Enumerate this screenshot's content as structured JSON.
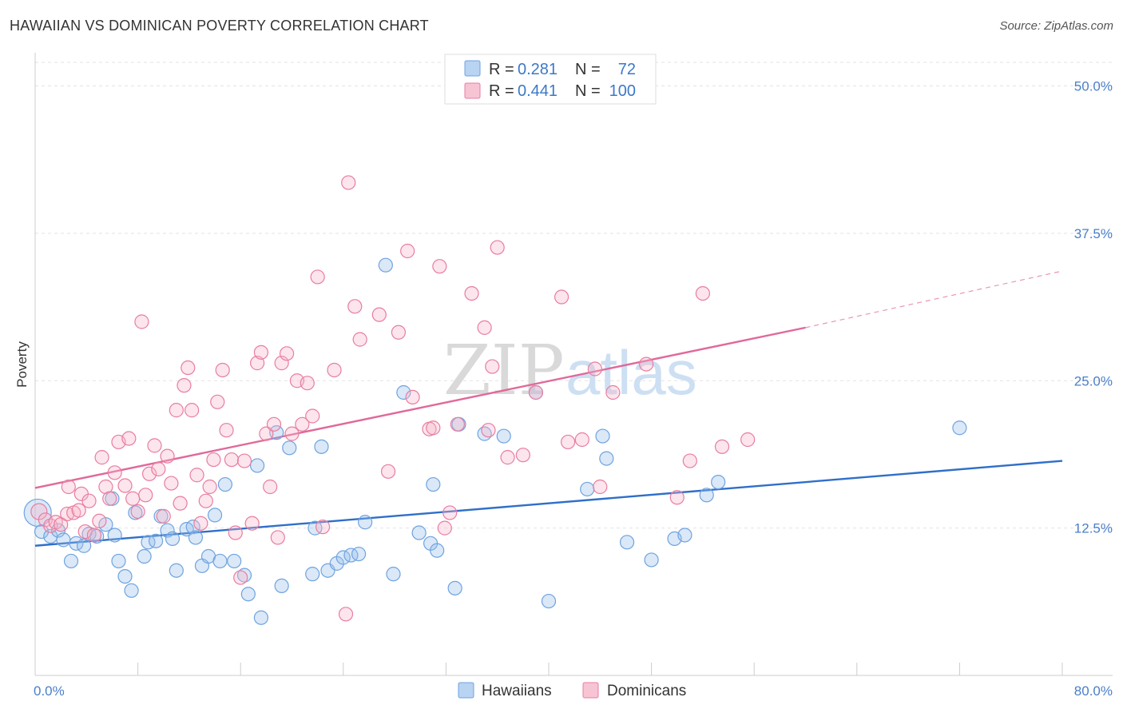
{
  "title": "HAWAIIAN VS DOMINICAN POVERTY CORRELATION CHART",
  "source": "Source: ZipAtlas.com",
  "watermark": {
    "zip": "ZIP",
    "atlas": "atlas"
  },
  "chart_data": {
    "type": "scatter",
    "ylabel": "Poverty",
    "xlim": [
      0,
      80
    ],
    "ylim": [
      0,
      52
    ],
    "x_tick_labels": [
      {
        "value": 0,
        "label": "0.0%"
      },
      {
        "value": 80,
        "label": "80.0%"
      }
    ],
    "y_tick_labels": [
      {
        "value": 12.5,
        "label": "12.5%"
      },
      {
        "value": 25,
        "label": "25.0%"
      },
      {
        "value": 37.5,
        "label": "37.5%"
      },
      {
        "value": 50,
        "label": "50.0%"
      }
    ],
    "grid": "horizontal-dashed",
    "legend_position": "top-center",
    "legend": [
      {
        "r_label": "R =",
        "r_value": "0.281",
        "n_label": "N =",
        "n_value": "72",
        "color": "#6fa3e0",
        "fill": "#b9d3f2"
      },
      {
        "r_label": "R =",
        "r_value": "0.441",
        "n_label": "N =",
        "n_value": "100",
        "color": "#e87da0",
        "fill": "#f7c4d4"
      }
    ],
    "series": [
      {
        "name": "Hawaiians",
        "color": "#6fa3e0",
        "fill": "rgba(150,190,235,0.35)",
        "trend_color": "#2f6fc9",
        "trend": {
          "x0": 0,
          "y0": 11.0,
          "x1": 80,
          "y1": 18.2
        },
        "points": [
          [
            0.2,
            13.8
          ],
          [
            0.5,
            12.2
          ],
          [
            1.2,
            11.8
          ],
          [
            1.8,
            12.3
          ],
          [
            2.2,
            11.5
          ],
          [
            2.8,
            9.7
          ],
          [
            3.2,
            11.2
          ],
          [
            3.8,
            11.0
          ],
          [
            4.2,
            12.0
          ],
          [
            4.8,
            11.8
          ],
          [
            5.5,
            12.8
          ],
          [
            6.0,
            15.0
          ],
          [
            6.2,
            11.9
          ],
          [
            6.5,
            9.7
          ],
          [
            7.0,
            8.4
          ],
          [
            7.5,
            7.2
          ],
          [
            7.8,
            13.8
          ],
          [
            8.5,
            10.1
          ],
          [
            8.8,
            11.3
          ],
          [
            9.4,
            11.4
          ],
          [
            9.8,
            13.5
          ],
          [
            10.3,
            12.3
          ],
          [
            10.7,
            11.6
          ],
          [
            11.0,
            8.9
          ],
          [
            11.8,
            12.4
          ],
          [
            12.3,
            12.6
          ],
          [
            12.5,
            11.7
          ],
          [
            13.0,
            9.3
          ],
          [
            13.5,
            10.1
          ],
          [
            14.0,
            13.6
          ],
          [
            14.4,
            9.7
          ],
          [
            14.8,
            16.2
          ],
          [
            15.5,
            9.7
          ],
          [
            16.3,
            8.5
          ],
          [
            16.6,
            6.9
          ],
          [
            17.3,
            17.8
          ],
          [
            17.6,
            4.9
          ],
          [
            18.8,
            20.6
          ],
          [
            19.2,
            7.6
          ],
          [
            19.8,
            19.3
          ],
          [
            21.6,
            8.6
          ],
          [
            21.8,
            12.5
          ],
          [
            22.3,
            19.4
          ],
          [
            22.8,
            8.9
          ],
          [
            23.5,
            9.5
          ],
          [
            24.0,
            10.0
          ],
          [
            24.6,
            10.2
          ],
          [
            25.2,
            10.3
          ],
          [
            25.7,
            13.0
          ],
          [
            27.3,
            34.8
          ],
          [
            27.9,
            8.6
          ],
          [
            28.7,
            24.0
          ],
          [
            29.9,
            12.1
          ],
          [
            30.8,
            11.2
          ],
          [
            31.0,
            16.2
          ],
          [
            31.3,
            10.6
          ],
          [
            32.7,
            7.4
          ],
          [
            33.0,
            21.3
          ],
          [
            35.0,
            20.5
          ],
          [
            36.5,
            20.3
          ],
          [
            39.0,
            24.0
          ],
          [
            40.0,
            6.3
          ],
          [
            43.0,
            15.8
          ],
          [
            44.2,
            20.3
          ],
          [
            44.5,
            18.4
          ],
          [
            46.1,
            11.3
          ],
          [
            48.0,
            9.8
          ],
          [
            49.8,
            11.6
          ],
          [
            50.6,
            11.9
          ],
          [
            52.3,
            15.3
          ],
          [
            53.2,
            16.4
          ],
          [
            72.0,
            21.0
          ]
        ]
      },
      {
        "name": "Dominicans",
        "color": "#e87da0",
        "fill": "rgba(245,180,200,0.35)",
        "trend_color": "#e0699a",
        "trend": {
          "x0": 0,
          "y0": 15.9,
          "x1": 60,
          "y1": 29.5
        },
        "trend_dashed_to": {
          "x": 80,
          "y": 34.3
        },
        "points": [
          [
            0.3,
            13.9
          ],
          [
            0.8,
            13.2
          ],
          [
            1.2,
            12.7
          ],
          [
            1.6,
            13.0
          ],
          [
            2.0,
            12.8
          ],
          [
            2.5,
            13.7
          ],
          [
            2.6,
            16.0
          ],
          [
            3.0,
            13.8
          ],
          [
            3.4,
            14.0
          ],
          [
            3.6,
            15.4
          ],
          [
            3.9,
            12.2
          ],
          [
            4.2,
            14.8
          ],
          [
            4.6,
            11.9
          ],
          [
            5.0,
            13.1
          ],
          [
            5.2,
            18.5
          ],
          [
            5.5,
            16.0
          ],
          [
            5.8,
            15.0
          ],
          [
            6.2,
            17.2
          ],
          [
            6.5,
            19.8
          ],
          [
            7.0,
            16.1
          ],
          [
            7.3,
            20.1
          ],
          [
            7.6,
            15.0
          ],
          [
            8.0,
            13.9
          ],
          [
            8.3,
            30.0
          ],
          [
            8.6,
            15.3
          ],
          [
            8.9,
            17.1
          ],
          [
            9.3,
            19.5
          ],
          [
            9.6,
            17.5
          ],
          [
            10.0,
            13.5
          ],
          [
            10.3,
            18.6
          ],
          [
            10.6,
            16.3
          ],
          [
            11.0,
            22.5
          ],
          [
            11.3,
            14.6
          ],
          [
            11.6,
            24.6
          ],
          [
            11.9,
            26.1
          ],
          [
            12.2,
            22.5
          ],
          [
            12.6,
            17.0
          ],
          [
            12.9,
            12.9
          ],
          [
            13.3,
            14.8
          ],
          [
            13.6,
            16.0
          ],
          [
            13.9,
            18.3
          ],
          [
            14.2,
            23.2
          ],
          [
            14.6,
            25.9
          ],
          [
            14.9,
            20.8
          ],
          [
            15.3,
            18.3
          ],
          [
            15.6,
            12.1
          ],
          [
            16.0,
            8.3
          ],
          [
            16.3,
            18.2
          ],
          [
            16.9,
            12.9
          ],
          [
            17.3,
            26.5
          ],
          [
            17.6,
            27.4
          ],
          [
            18.0,
            20.5
          ],
          [
            18.3,
            16.0
          ],
          [
            18.6,
            21.3
          ],
          [
            18.9,
            11.7
          ],
          [
            19.2,
            26.5
          ],
          [
            19.6,
            27.3
          ],
          [
            20.0,
            20.5
          ],
          [
            20.4,
            25.0
          ],
          [
            20.8,
            21.3
          ],
          [
            21.2,
            24.8
          ],
          [
            21.6,
            22.0
          ],
          [
            22.0,
            33.8
          ],
          [
            22.4,
            12.6
          ],
          [
            23.3,
            25.9
          ],
          [
            24.2,
            5.2
          ],
          [
            24.4,
            41.8
          ],
          [
            24.9,
            31.3
          ],
          [
            25.3,
            28.5
          ],
          [
            26.8,
            30.6
          ],
          [
            27.5,
            17.3
          ],
          [
            28.3,
            29.1
          ],
          [
            29.0,
            36.0
          ],
          [
            29.4,
            23.6
          ],
          [
            30.7,
            20.9
          ],
          [
            31.5,
            34.7
          ],
          [
            31.9,
            12.5
          ],
          [
            32.3,
            13.8
          ],
          [
            32.9,
            21.3
          ],
          [
            34.0,
            32.4
          ],
          [
            35.0,
            29.5
          ],
          [
            35.3,
            20.8
          ],
          [
            35.6,
            26.2
          ],
          [
            36.8,
            18.5
          ],
          [
            38.0,
            18.7
          ],
          [
            39.0,
            24.0
          ],
          [
            41.0,
            32.1
          ],
          [
            41.5,
            19.8
          ],
          [
            42.6,
            20.0
          ],
          [
            43.6,
            26.0
          ],
          [
            44.0,
            16.0
          ],
          [
            45.0,
            24.0
          ],
          [
            47.6,
            26.4
          ],
          [
            50.0,
            15.1
          ],
          [
            51.0,
            18.2
          ],
          [
            52.0,
            32.4
          ],
          [
            53.5,
            19.4
          ],
          [
            55.5,
            20.0
          ],
          [
            36.0,
            36.3
          ],
          [
            31.0,
            21.0
          ]
        ]
      }
    ]
  }
}
